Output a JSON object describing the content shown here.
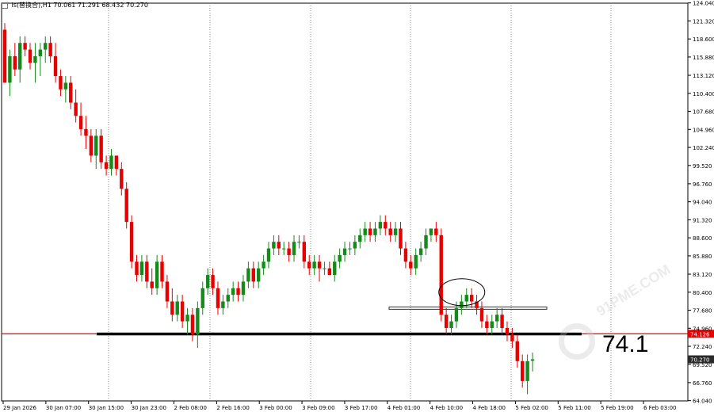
{
  "header": {
    "symbol": "ls(替换合),H1",
    "values": "70.061 71.291 68.432 70.270"
  },
  "annotation": {
    "text": "74.1"
  },
  "watermark": {
    "text": "91PME.COM"
  },
  "colors": {
    "bull": "#138a1a",
    "bear": "#e60000",
    "support_line": "#000000",
    "red_line": "#e60000",
    "grid": "#c8c8c8",
    "axis_bg": "#ffffff",
    "label_red_bg": "#e60000",
    "label_dark_bg": "#2a2a2a"
  },
  "chart_data": {
    "type": "candlestick",
    "timeframe": "H1",
    "ylim": [
      64.0,
      124.0
    ],
    "y_ticks": [
      "124.040",
      "121.320",
      "118.600",
      "115.880",
      "113.120",
      "110.400",
      "107.680",
      "104.960",
      "102.240",
      "99.520",
      "96.760",
      "94.040",
      "91.320",
      "88.600",
      "85.880",
      "83.120",
      "80.400",
      "77.680",
      "74.960",
      "72.240",
      "69.520",
      "66.760",
      "64.040"
    ],
    "x_ticks": [
      "29 Jan 2026",
      "30 Jan 07:00",
      "30 Jan 15:00",
      "30 Jan 23:00",
      "2 Feb 08:00",
      "2 Feb 16:00",
      "3 Feb 00:00",
      "3 Feb 09:00",
      "3 Feb 17:00",
      "4 Feb 01:00",
      "4 Feb 10:00",
      "4 Feb 18:00",
      "5 Feb 02:00",
      "5 Feb 11:00",
      "5 Feb 19:00",
      "6 Feb 03:00"
    ],
    "ohlc": [
      [
        120,
        121,
        112,
        112
      ],
      [
        112,
        117,
        110,
        116
      ],
      [
        116,
        118,
        113,
        114
      ],
      [
        114,
        119,
        112,
        118
      ],
      [
        118,
        119,
        116,
        117
      ],
      [
        117,
        118,
        114,
        115
      ],
      [
        115,
        118,
        112,
        116
      ],
      [
        116,
        118,
        113,
        117
      ],
      [
        117,
        119,
        115,
        118
      ],
      [
        118,
        119,
        115,
        116
      ],
      [
        116,
        118,
        112,
        113
      ],
      [
        113,
        114,
        110,
        111
      ],
      [
        111,
        113,
        109,
        112
      ],
      [
        112,
        113,
        108,
        109
      ],
      [
        109,
        111,
        106,
        107
      ],
      [
        107,
        109,
        104,
        105
      ],
      [
        105,
        107,
        102,
        104
      ],
      [
        104,
        105,
        100,
        101
      ],
      [
        101,
        105,
        99,
        104
      ],
      [
        104,
        105,
        99,
        100
      ],
      [
        100,
        101,
        98,
        99
      ],
      [
        99,
        102,
        98,
        101
      ],
      [
        101,
        101,
        98,
        99
      ],
      [
        99,
        100,
        95,
        96
      ],
      [
        96,
        97,
        90,
        91
      ],
      [
        91,
        92,
        84,
        85
      ],
      [
        85,
        86,
        82,
        83
      ],
      [
        83,
        86,
        82,
        85
      ],
      [
        85,
        86,
        81,
        82
      ],
      [
        82,
        84,
        80,
        81
      ],
      [
        81,
        86,
        80,
        85
      ],
      [
        85,
        86,
        81,
        82
      ],
      [
        82,
        83,
        78,
        79
      ],
      [
        79,
        81,
        76,
        77
      ],
      [
        77,
        80,
        76,
        79
      ],
      [
        79,
        80,
        75,
        76
      ],
      [
        76,
        78,
        74,
        77
      ],
      [
        77,
        78,
        73,
        74
      ],
      [
        74,
        79,
        72,
        78
      ],
      [
        78,
        82,
        77,
        81
      ],
      [
        81,
        84,
        80,
        83
      ],
      [
        83,
        84,
        80,
        81
      ],
      [
        81,
        82,
        77,
        78
      ],
      [
        78,
        80,
        77,
        79
      ],
      [
        79,
        81,
        78,
        80
      ],
      [
        80,
        82,
        79,
        81
      ],
      [
        81,
        82,
        79,
        80
      ],
      [
        80,
        83,
        79,
        82
      ],
      [
        82,
        85,
        81,
        84
      ],
      [
        84,
        85,
        81,
        82
      ],
      [
        82,
        85,
        81,
        84
      ],
      [
        84,
        86,
        83,
        85
      ],
      [
        85,
        88,
        84,
        87
      ],
      [
        87,
        89,
        86,
        88
      ],
      [
        88,
        89,
        86,
        87
      ],
      [
        87,
        88,
        86,
        87
      ],
      [
        87,
        88,
        85,
        86
      ],
      [
        86,
        89,
        85,
        88
      ],
      [
        88,
        89,
        87,
        88
      ],
      [
        88,
        89,
        84,
        85
      ],
      [
        85,
        86,
        83,
        84
      ],
      [
        84,
        86,
        83,
        85
      ],
      [
        85,
        86,
        82,
        84
      ],
      [
        84,
        85,
        83,
        84
      ],
      [
        84,
        85,
        83,
        83
      ],
      [
        83,
        86,
        82,
        85
      ],
      [
        85,
        87,
        84,
        86
      ],
      [
        86,
        88,
        85,
        87
      ],
      [
        87,
        88,
        86,
        87
      ],
      [
        87,
        89,
        86,
        88
      ],
      [
        88,
        90,
        87,
        89
      ],
      [
        89,
        91,
        88,
        90
      ],
      [
        90,
        91,
        88,
        89
      ],
      [
        89,
        91,
        88,
        90
      ],
      [
        90,
        92,
        89,
        91
      ],
      [
        91,
        92,
        89,
        90
      ],
      [
        90,
        91,
        88,
        89
      ],
      [
        89,
        91,
        88,
        90
      ],
      [
        90,
        91,
        86,
        87
      ],
      [
        87,
        88,
        84,
        85
      ],
      [
        85,
        86,
        83,
        84
      ],
      [
        84,
        87,
        83,
        86
      ],
      [
        86,
        88,
        85,
        87
      ],
      [
        87,
        90,
        86,
        89
      ],
      [
        89,
        90,
        88,
        90
      ],
      [
        90,
        91,
        88,
        89
      ],
      [
        89,
        90,
        76,
        77
      ],
      [
        77,
        78,
        74,
        75
      ],
      [
        75,
        77,
        74,
        76
      ],
      [
        76,
        79,
        75,
        78
      ],
      [
        78,
        80,
        77,
        79
      ],
      [
        79,
        81,
        78,
        80
      ],
      [
        80,
        81,
        78,
        79
      ],
      [
        79,
        80,
        77,
        78
      ],
      [
        78,
        79,
        75,
        76
      ],
      [
        76,
        77,
        74,
        75
      ],
      [
        75,
        77,
        74,
        76
      ],
      [
        76,
        78,
        75,
        77
      ],
      [
        77,
        78,
        74,
        75
      ],
      [
        75,
        76,
        73,
        74
      ],
      [
        74,
        75,
        72,
        73
      ],
      [
        73,
        74,
        69,
        70
      ],
      [
        70,
        71,
        66,
        67
      ],
      [
        67,
        71,
        65,
        70
      ],
      [
        70.061,
        71.291,
        68.432,
        70.27
      ]
    ],
    "levels": [
      {
        "label": "74.126",
        "type": "support",
        "value": 74.126
      },
      {
        "type": "resistance-zone",
        "value": 78.0
      }
    ],
    "last_price": "70.270",
    "level_label": "74.126"
  }
}
